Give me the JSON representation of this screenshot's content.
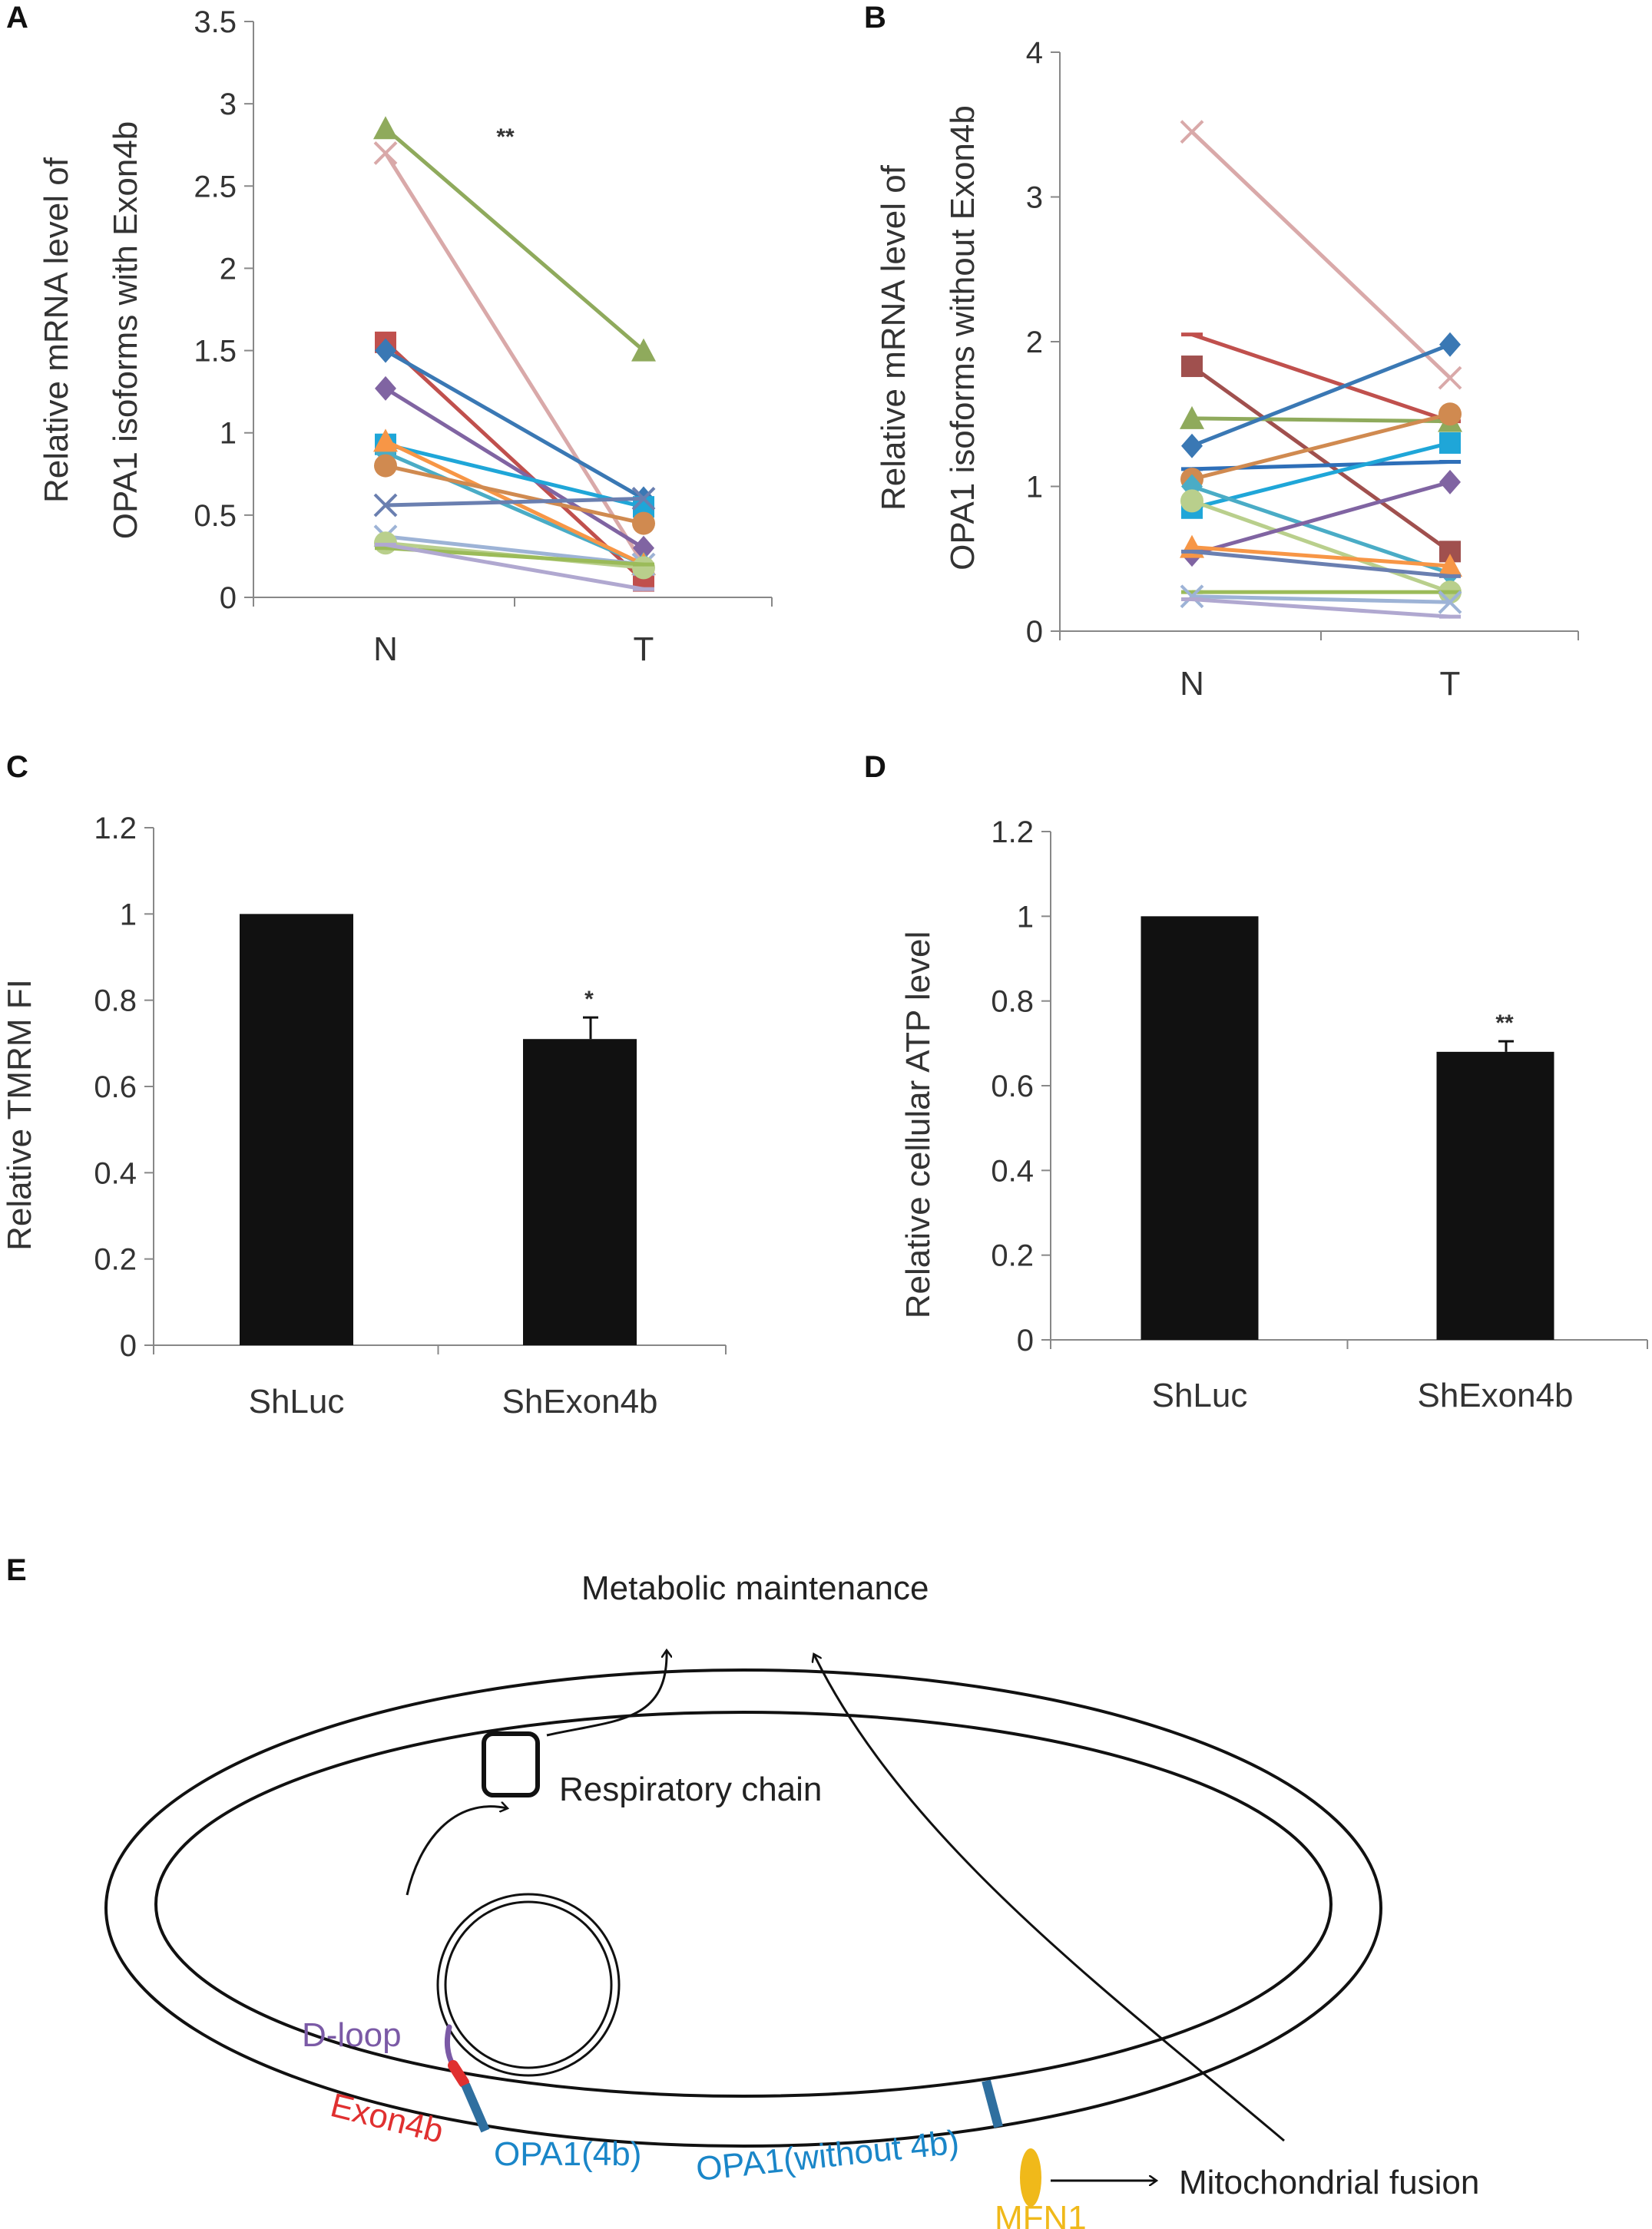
{
  "chart_data": [
    {
      "panel": "A",
      "type": "line",
      "title": "",
      "xlabel": "",
      "ylabel_line1": "Relative mRNA level of",
      "ylabel_line2": "OPA1 isoforms with Exon4b",
      "categories": [
        "N",
        "T"
      ],
      "ylim": [
        0,
        3.5
      ],
      "yticks": [
        "0",
        "0.5",
        "1",
        "1.5",
        "2",
        "2.5",
        "3",
        "3.5"
      ],
      "annotation": "**",
      "series": [
        {
          "values": [
            2.85,
            1.5
          ],
          "color": "#8faa5c",
          "marker": "triangle"
        },
        {
          "values": [
            2.7,
            0.2
          ],
          "color": "#d9a9a9",
          "marker": "x"
        },
        {
          "values": [
            1.55,
            0.1
          ],
          "color": "#c0504d",
          "marker": "square"
        },
        {
          "values": [
            1.5,
            0.6
          ],
          "color": "#3a78b4",
          "marker": "diamond"
        },
        {
          "values": [
            1.27,
            0.3
          ],
          "color": "#8064a2",
          "marker": "diamond"
        },
        {
          "values": [
            0.93,
            0.55
          ],
          "color": "#1fa6d8",
          "marker": "square"
        },
        {
          "values": [
            0.88,
            0.2
          ],
          "color": "#4aacc6",
          "marker": "diamond"
        },
        {
          "values": [
            0.95,
            0.2
          ],
          "color": "#f79646",
          "marker": "triangle"
        },
        {
          "values": [
            0.8,
            0.45
          ],
          "color": "#d08a50",
          "marker": "circle"
        },
        {
          "values": [
            0.56,
            0.6
          ],
          "color": "#6a7fb0",
          "marker": "x"
        },
        {
          "values": [
            0.37,
            0.2
          ],
          "color": "#9db3d6",
          "marker": "x"
        },
        {
          "values": [
            0.33,
            0.18
          ],
          "color": "#b9cf8c",
          "marker": "circle"
        },
        {
          "values": [
            0.3,
            0.2
          ],
          "color": "#9bbb59",
          "marker": "line"
        },
        {
          "values": [
            0.32,
            0.05
          ],
          "color": "#b0a8d0",
          "marker": "line"
        }
      ]
    },
    {
      "panel": "B",
      "type": "line",
      "title": "",
      "xlabel": "",
      "ylabel_line1": "Relative mRNA level of",
      "ylabel_line2": "OPA1 isoforms without Exon4b",
      "categories": [
        "N",
        "T"
      ],
      "ylim": [
        0,
        4
      ],
      "yticks": [
        "0",
        "1",
        "2",
        "3",
        "4"
      ],
      "series": [
        {
          "values": [
            3.45,
            1.75
          ],
          "color": "#d9a9a9",
          "marker": "x"
        },
        {
          "values": [
            2.05,
            1.45
          ],
          "color": "#c0504d",
          "marker": "line"
        },
        {
          "values": [
            1.83,
            0.55
          ],
          "color": "#a0504e",
          "marker": "square"
        },
        {
          "values": [
            1.47,
            1.45
          ],
          "color": "#8faa5c",
          "marker": "triangle"
        },
        {
          "values": [
            1.28,
            1.98
          ],
          "color": "#3a78b4",
          "marker": "diamond"
        },
        {
          "values": [
            1.12,
            1.17
          ],
          "color": "#2e6fb8",
          "marker": "line"
        },
        {
          "values": [
            1.05,
            1.5
          ],
          "color": "#d08a50",
          "marker": "circle"
        },
        {
          "values": [
            0.85,
            1.3
          ],
          "color": "#1fa6d8",
          "marker": "square"
        },
        {
          "values": [
            1.0,
            0.4
          ],
          "color": "#4aacc6",
          "marker": "diamond"
        },
        {
          "values": [
            0.9,
            0.27
          ],
          "color": "#b9cf8c",
          "marker": "circle"
        },
        {
          "values": [
            0.53,
            1.03
          ],
          "color": "#8064a2",
          "marker": "diamond"
        },
        {
          "values": [
            0.58,
            0.45
          ],
          "color": "#f79646",
          "marker": "triangle"
        },
        {
          "values": [
            0.55,
            0.38
          ],
          "color": "#6a7fb0",
          "marker": "line"
        },
        {
          "values": [
            0.27,
            0.27
          ],
          "color": "#9bbb59",
          "marker": "line"
        },
        {
          "values": [
            0.24,
            0.2
          ],
          "color": "#9db3d6",
          "marker": "x"
        },
        {
          "values": [
            0.22,
            0.1
          ],
          "color": "#b0a8d0",
          "marker": "line"
        }
      ]
    },
    {
      "panel": "C",
      "type": "bar",
      "title": "",
      "xlabel": "",
      "ylabel": "Relative TMRM FI",
      "categories": [
        "ShLuc",
        "ShExon4b"
      ],
      "values": [
        1.0,
        0.71
      ],
      "errors": [
        0,
        0.05
      ],
      "significance": [
        "",
        "*"
      ],
      "ylim": [
        0,
        1.2
      ],
      "yticks": [
        "0",
        "0.2",
        "0.4",
        "0.6",
        "0.8",
        "1",
        "1.2"
      ]
    },
    {
      "panel": "D",
      "type": "bar",
      "title": "",
      "xlabel": "",
      "ylabel": "Relative cellular ATP level",
      "categories": [
        "ShLuc",
        "ShExon4b"
      ],
      "values": [
        1.0,
        0.68
      ],
      "errors": [
        0,
        0.025
      ],
      "significance": [
        "",
        "**"
      ],
      "ylim": [
        0,
        1.2
      ],
      "yticks": [
        "0",
        "0.2",
        "0.4",
        "0.6",
        "0.8",
        "1",
        "1.2"
      ]
    }
  ],
  "diagram": {
    "panel": "E",
    "metabolic_maintenance": "Metabolic maintenance",
    "respiratory_chain": "Respiratory chain",
    "d_loop": "D-loop",
    "exon4b": "Exon4b",
    "opa1_4b": "OPA1(4b)",
    "opa1_without_4b": "OPA1(without 4b)",
    "mitochondrial_fusion": "Mitochondrial fusion",
    "mfn1": "MFN1",
    "colors": {
      "d_loop": "#7b5aa6",
      "exon4b": "#e03030",
      "opa1": "#1a86c8",
      "opa1_bar": "#2f6f9f",
      "mfn1": "#f0b91a"
    }
  }
}
